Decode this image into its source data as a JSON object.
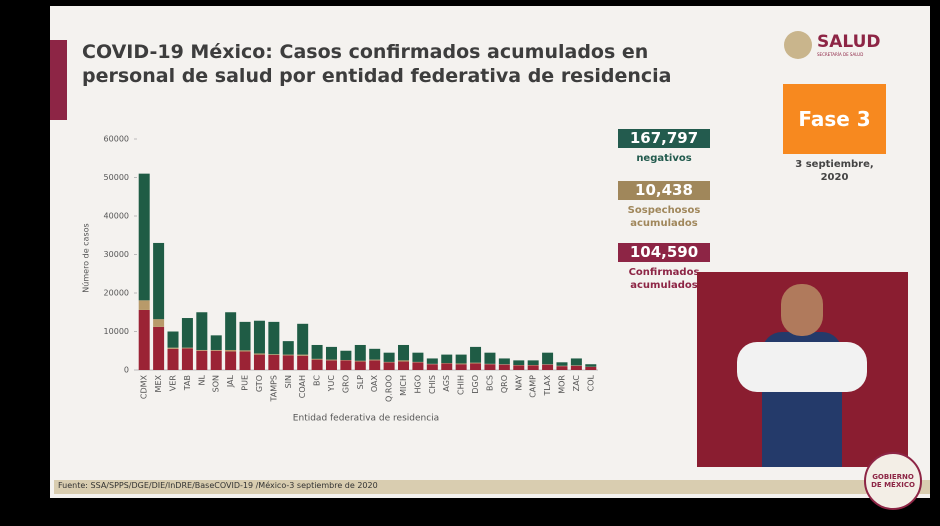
{
  "header": {
    "title": "COVID-19 México: Casos confirmados acumulados en personal de salud por entidad federativa de residencia",
    "logo": "SALUD",
    "logo_sub": "SECRETARÍA DE SALUD"
  },
  "phase": "Fase 3",
  "date": "3 septiembre, 2020",
  "cards": [
    {
      "number": "167,797",
      "label": "negativos",
      "color": "#235b4e"
    },
    {
      "number": "10,438",
      "label": "Sospechosos acumulados",
      "color": "#a0875b"
    },
    {
      "number": "104,590",
      "label": "Confirmados acumulados",
      "color": "#8d2545"
    }
  ],
  "source": "Fuente: SSA/SPPS/DGE/DIE/InDRE/BaseCOVID-19 /México-3 septiembre de 2020",
  "badge": "GOBIERNO DE MÉXICO",
  "chart_data": {
    "type": "stacked-bar",
    "y_label": "Número de casos",
    "x_label": "Entidad federativa de residencia",
    "categories": [
      "CDMX",
      "MEX",
      "VER",
      "TAB",
      "NL",
      "SON",
      "JAL",
      "PUE",
      "GTO",
      "TAMPS",
      "SIN",
      "COAH",
      "BC",
      "YUC",
      "GRO",
      "SLP",
      "OAX",
      "Q.ROO",
      "MICH",
      "HGO",
      "CHIS",
      "AGS",
      "CHIH",
      "DGO",
      "BCS",
      "QRO",
      "NAY",
      "CAMP",
      "TLAX",
      "MOR",
      "ZAC",
      "COL"
    ],
    "series": [
      {
        "color": "#9b2335",
        "values": [
          15600,
          11200,
          5500,
          5600,
          5000,
          5000,
          4800,
          4800,
          4000,
          3900,
          3800,
          3700,
          2700,
          2500,
          2500,
          2200,
          2500,
          2000,
          2200,
          2000,
          1500,
          1700,
          1500,
          1700,
          1500,
          1400,
          1200,
          1200,
          1400,
          1000,
          1100,
          800
        ]
      },
      {
        "color": "#b89a6a",
        "values": [
          2500,
          2000,
          300,
          200,
          200,
          200,
          400,
          300,
          300,
          200,
          200,
          300,
          200,
          200,
          100,
          200,
          200,
          100,
          300,
          100,
          100,
          100,
          200,
          200,
          100,
          100,
          100,
          100,
          100,
          100,
          100,
          50
        ]
      },
      {
        "color": "#1f5c45",
        "values": [
          32900,
          19800,
          4200,
          7700,
          9800,
          3800,
          9800,
          7400,
          8500,
          8400,
          3500,
          8000,
          3600,
          3300,
          2400,
          4100,
          2800,
          2400,
          4000,
          2400,
          1400,
          2200,
          2300,
          4100,
          2900,
          1500,
          1200,
          1200,
          3000,
          900,
          1800,
          650
        ]
      }
    ],
    "ylim": [
      0,
      60000
    ],
    "yticks": [
      0,
      10000,
      20000,
      30000,
      40000,
      50000,
      60000
    ]
  }
}
